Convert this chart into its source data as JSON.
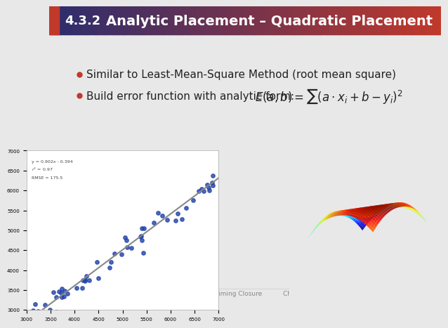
{
  "slide_number": "4.3.2",
  "title": "Analytic Placement – Quadratic Placement",
  "header_bg_left": "#2b2d6e",
  "header_bg_right": "#c0392b",
  "header_red_stripe": "#c0392b",
  "body_bg": "#e8e8e8",
  "bullet_color": "#c0392b",
  "text_color": "#222222",
  "bullet1": "Similar to Least-Mean-Square Method (root mean square)",
  "bullet2_prefix": "Build error function with analytic form: ",
  "formula": "$E(a,b) = \\sum\\left(a \\cdot x_i + b - y_i\\right)^2$",
  "footer_left": "VLSI Physical Design: From Graph Partitioning to Timing Closure",
  "footer_right": "Chapter 4: Global and Detailed Placement   31",
  "footer_color": "#888888"
}
